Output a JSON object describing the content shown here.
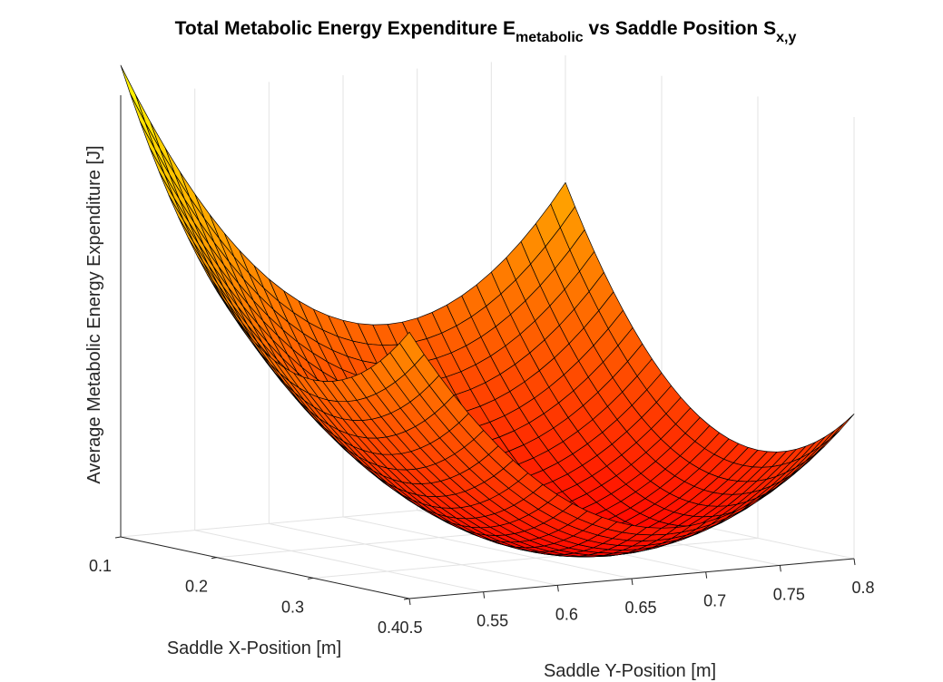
{
  "chart_data": {
    "type": "surface",
    "title": {
      "main": "Total Metabolic Energy Expenditure E",
      "sub1": "metabolic",
      "mid": " vs Saddle Position S",
      "sub2": "x,y"
    },
    "xlabel": "Saddle X-Position [m]",
    "ylabel": "Saddle Y-Position [m]",
    "zlabel": "Average Metabolic Energy Expenditure [J]",
    "x_range": [
      0.1,
      0.4
    ],
    "y_range": [
      0.5,
      0.8
    ],
    "x_ticks": [
      "0.1",
      "0.2",
      "0.3",
      "0.4"
    ],
    "y_ticks": [
      "0.5",
      "0.55",
      "0.6",
      "0.65",
      "0.7",
      "0.75",
      "0.8"
    ],
    "z_ticks": [],
    "grid": "on",
    "colormap": "autumn",
    "colormap_stops": [
      "#ff0000",
      "#ffff00"
    ],
    "edge_color": "#000000",
    "minimum": {
      "x": 0.3,
      "y": 0.68
    },
    "grid_resolution": 31
  }
}
